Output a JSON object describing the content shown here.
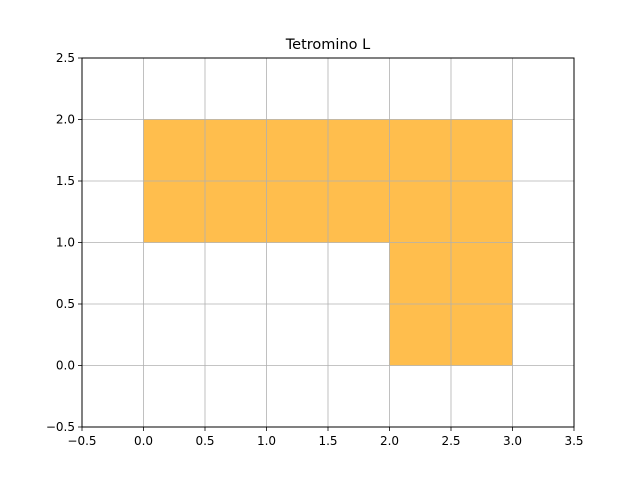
{
  "chart_data": {
    "type": "area",
    "title": "Tetromino L",
    "xlim": [
      -0.5,
      3.5
    ],
    "ylim": [
      -0.5,
      2.5
    ],
    "x_ticks": [
      -0.5,
      0.0,
      0.5,
      1.0,
      1.5,
      2.0,
      2.5,
      3.0,
      3.5
    ],
    "y_ticks": [
      -0.5,
      0.0,
      0.5,
      1.0,
      1.5,
      2.0,
      2.5
    ],
    "x_tick_labels": [
      "−0.5",
      "0.0",
      "0.5",
      "1.0",
      "1.5",
      "2.0",
      "2.5",
      "3.0",
      "3.5"
    ],
    "y_tick_labels": [
      "−0.5",
      "0.0",
      "0.5",
      "1.0",
      "1.5",
      "2.0",
      "2.5"
    ],
    "grid": true,
    "fill_color": "#FFBE4D",
    "cells": [
      {
        "x": 0,
        "y": 1
      },
      {
        "x": 1,
        "y": 1
      },
      {
        "x": 2,
        "y": 1
      },
      {
        "x": 2,
        "y": 0
      }
    ]
  }
}
